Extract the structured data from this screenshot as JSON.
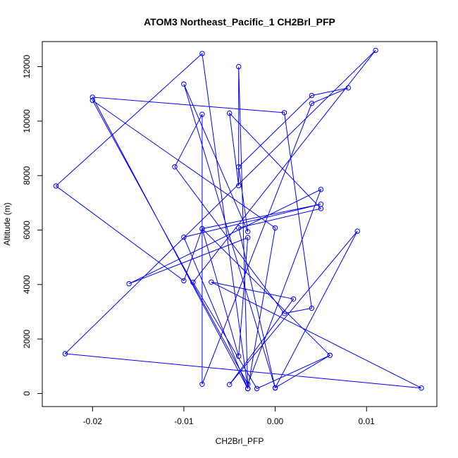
{
  "chart_data": {
    "type": "line",
    "title": "ATOM3 Northeast_Pacific_1 CH2Brl_PFP",
    "xlabel": "CH2Brl_PFP",
    "ylabel": "Altitude (m)",
    "xlim": [
      -0.0255,
      0.0177
    ],
    "ylim": [
      -480,
      12920
    ],
    "xticks": [
      -0.02,
      -0.01,
      0.0,
      0.01
    ],
    "xtick_labels": [
      "-0.02",
      "-0.01",
      "0.00",
      "0.01"
    ],
    "yticks": [
      0,
      2000,
      4000,
      6000,
      8000,
      10000,
      12000
    ],
    "ytick_labels": [
      "0",
      "2000",
      "4000",
      "6000",
      "8000",
      "10000",
      "12000"
    ],
    "grid": false,
    "color": "#0000ff",
    "series": [
      {
        "x": [
          -0.003,
          -0.008,
          -0.024,
          -0.01,
          -0.008,
          -0.004,
          -0.003,
          -0.016,
          0.005,
          -0.003,
          -0.02,
          0.0,
          -0.003,
          -0.004,
          -0.004,
          -0.005,
          0.005,
          -0.004,
          0.0,
          -0.01,
          -0.003,
          -0.004,
          0.004,
          0.008,
          0.004,
          -0.008,
          -0.008,
          -0.011,
          0.001,
          0.004,
          0.001,
          -0.02,
          -0.003,
          -0.01,
          0.005,
          -0.008,
          0.006,
          -0.002,
          -0.009,
          0.011,
          -0.023,
          0.016,
          -0.007,
          0.002,
          -0.005,
          0.009,
          0.0,
          0.006
        ],
        "y": [
          180,
          12480,
          7620,
          4140,
          6050,
          1370,
          5720,
          4030,
          7490,
          340,
          10760,
          6080,
          180,
          12000,
          7630,
          10290,
          6790,
          6080,
          200,
          11360,
          5940,
          8320,
          10940,
          11220,
          10650,
          340,
          10250,
          8320,
          2940,
          3130,
          10310,
          10880,
          180,
          5740,
          6950,
          6050,
          1400,
          180,
          4080,
          12600,
          1460,
          200,
          4090,
          3470,
          330,
          5960,
          210,
          1400
        ]
      }
    ]
  }
}
